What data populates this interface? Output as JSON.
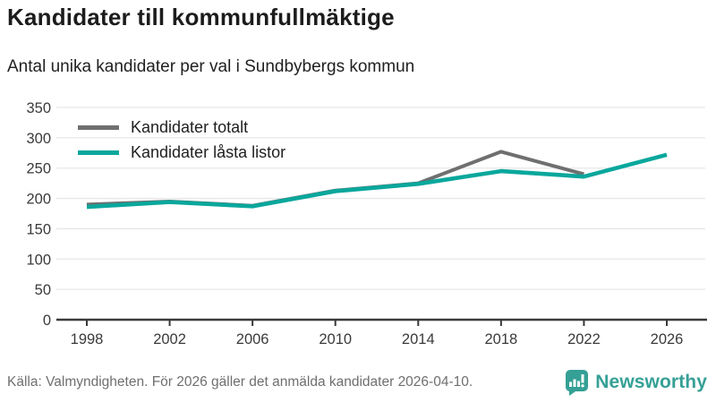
{
  "header": {
    "title": "Kandidater till kommunfullmäktige",
    "subtitle": "Antal unika kandidater per val i Sundbybergs kommun"
  },
  "chart_data": {
    "type": "line",
    "x": [
      "1998",
      "2002",
      "2006",
      "2010",
      "2014",
      "2018",
      "2022",
      "2026"
    ],
    "series": [
      {
        "name": "Kandidater totalt",
        "color": "#6f6f6f",
        "values": [
          190,
          195,
          188,
          213,
          225,
          277,
          240,
          null
        ]
      },
      {
        "name": "Kandidater låsta listor",
        "color": "#0aa79c",
        "values": [
          186,
          194,
          187,
          212,
          224,
          245,
          236,
          272
        ]
      }
    ],
    "ylim": [
      0,
      350
    ],
    "yticks": [
      0,
      50,
      100,
      150,
      200,
      250,
      300,
      350
    ],
    "grid": true,
    "legend_position": "top-left",
    "xlabel": "",
    "ylabel": ""
  },
  "footer": {
    "source": "Källa: Valmyndigheten. För 2026 gäller det anmälda kandidater 2026-04-10.",
    "brand": "Newsworthy"
  },
  "colors": {
    "accent_teal": "#0aa79c",
    "series_gray": "#6f6f6f",
    "brand_teal": "#35a096",
    "grid": "#e7e7e7",
    "axis": "#3a3a3a",
    "text_dark": "#1c1c1c",
    "text_muted": "#6f6f6f"
  }
}
